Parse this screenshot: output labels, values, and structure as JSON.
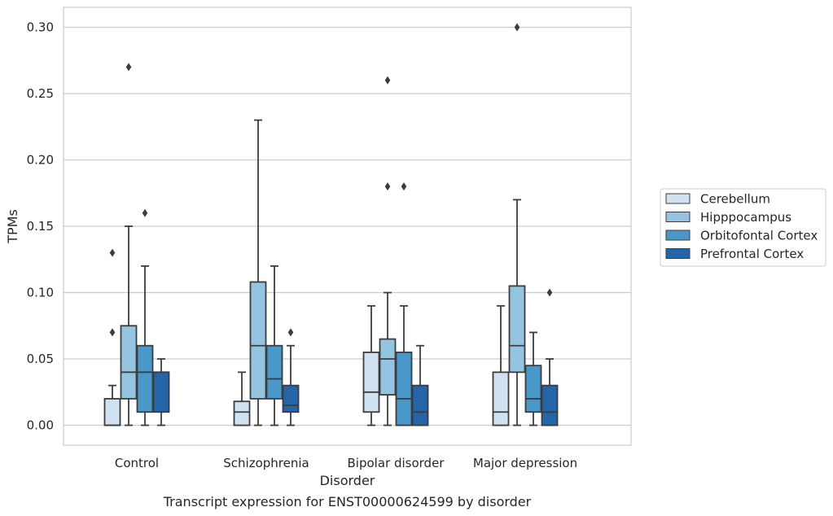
{
  "chart_data": {
    "type": "box",
    "xlabel": "Disorder",
    "ylabel": "TPMs",
    "caption": "Transcript expression for ENST00000624599 by disorder",
    "ylim": [
      -0.015,
      0.315
    ],
    "yticks": [
      0.0,
      0.05,
      0.1,
      0.15,
      0.2,
      0.25,
      0.3
    ],
    "ytick_labels": [
      "0.00",
      "0.05",
      "0.10",
      "0.15",
      "0.20",
      "0.25",
      "0.30"
    ],
    "grid": "horizontal",
    "legend_position": "right",
    "categories": [
      "Control",
      "Schizophrenia",
      "Bipolar disorder",
      "Major depression"
    ],
    "series": [
      {
        "name": "Cerebellum",
        "color": "#d0e1f2",
        "boxes": [
          {
            "whislo": 0.0,
            "q1": 0.0,
            "med": 0.0,
            "q3": 0.02,
            "whishi": 0.03,
            "fliers": [
              0.07,
              0.13
            ]
          },
          {
            "whislo": 0.0,
            "q1": 0.0,
            "med": 0.01,
            "q3": 0.018,
            "whishi": 0.04,
            "fliers": []
          },
          {
            "whislo": 0.0,
            "q1": 0.01,
            "med": 0.025,
            "q3": 0.055,
            "whishi": 0.09,
            "fliers": []
          },
          {
            "whislo": 0.0,
            "q1": 0.0,
            "med": 0.01,
            "q3": 0.04,
            "whishi": 0.09,
            "fliers": []
          }
        ]
      },
      {
        "name": "Hipppocampus",
        "color": "#94c4df",
        "boxes": [
          {
            "whislo": 0.0,
            "q1": 0.02,
            "med": 0.04,
            "q3": 0.075,
            "whishi": 0.15,
            "fliers": [
              0.27
            ]
          },
          {
            "whislo": 0.0,
            "q1": 0.02,
            "med": 0.06,
            "q3": 0.108,
            "whishi": 0.23,
            "fliers": []
          },
          {
            "whislo": 0.0,
            "q1": 0.023,
            "med": 0.05,
            "q3": 0.065,
            "whishi": 0.1,
            "fliers": [
              0.18,
              0.26
            ]
          },
          {
            "whislo": 0.0,
            "q1": 0.04,
            "med": 0.06,
            "q3": 0.105,
            "whishi": 0.17,
            "fliers": [
              0.3
            ]
          }
        ]
      },
      {
        "name": "Orbitofontal Cortex",
        "color": "#4a98c9",
        "boxes": [
          {
            "whislo": 0.0,
            "q1": 0.01,
            "med": 0.04,
            "q3": 0.06,
            "whishi": 0.12,
            "fliers": [
              0.16
            ]
          },
          {
            "whislo": 0.0,
            "q1": 0.02,
            "med": 0.035,
            "q3": 0.06,
            "whishi": 0.12,
            "fliers": []
          },
          {
            "whislo": 0.0,
            "q1": 0.0,
            "med": 0.02,
            "q3": 0.055,
            "whishi": 0.09,
            "fliers": [
              0.18
            ]
          },
          {
            "whislo": 0.0,
            "q1": 0.01,
            "med": 0.02,
            "q3": 0.045,
            "whishi": 0.07,
            "fliers": []
          }
        ]
      },
      {
        "name": "Prefrontal Cortex",
        "color": "#2464a8",
        "boxes": [
          {
            "whislo": 0.0,
            "q1": 0.01,
            "med": 0.04,
            "q3": 0.04,
            "whishi": 0.05,
            "fliers": []
          },
          {
            "whislo": 0.0,
            "q1": 0.01,
            "med": 0.015,
            "q3": 0.03,
            "whishi": 0.06,
            "fliers": [
              0.07
            ]
          },
          {
            "whislo": 0.0,
            "q1": 0.0,
            "med": 0.01,
            "q3": 0.03,
            "whishi": 0.06,
            "fliers": []
          },
          {
            "whislo": 0.0,
            "q1": 0.0,
            "med": 0.01,
            "q3": 0.03,
            "whishi": 0.05,
            "fliers": [
              0.1
            ]
          }
        ]
      }
    ]
  }
}
